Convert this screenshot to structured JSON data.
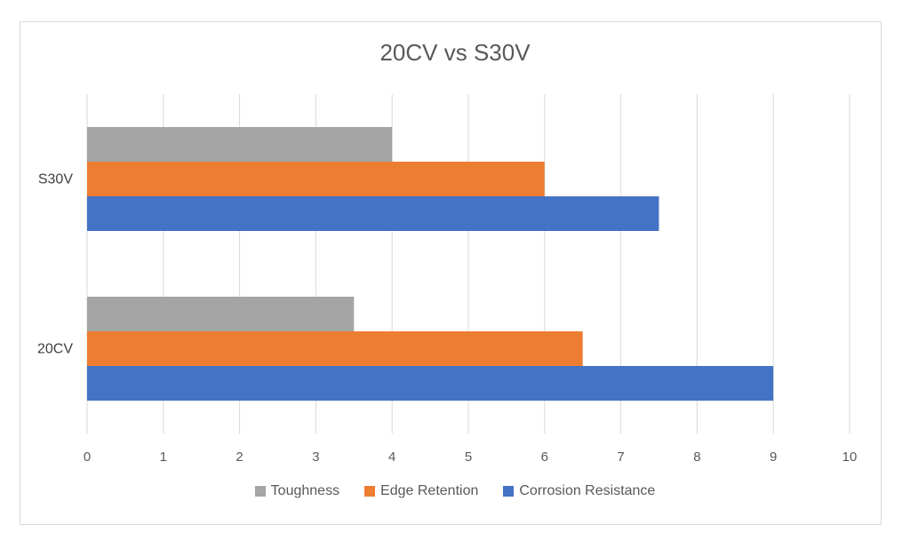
{
  "chart_data": {
    "type": "bar",
    "orientation": "horizontal",
    "title": "20CV vs S30V",
    "categories": [
      "20CV",
      "S30V"
    ],
    "series": [
      {
        "name": "Toughness",
        "color": "#a5a5a5",
        "values": [
          3.5,
          4
        ]
      },
      {
        "name": "Edge Retention",
        "color": "#ed7d31",
        "values": [
          6.5,
          6
        ]
      },
      {
        "name": "Corrosion Resistance",
        "color": "#4472c4",
        "values": [
          9,
          7.5
        ]
      }
    ],
    "xlim": [
      0,
      10
    ],
    "xticks": [
      "0",
      "1",
      "2",
      "3",
      "4",
      "5",
      "6",
      "7",
      "8",
      "9",
      "10"
    ],
    "grid": true,
    "legend_position": "bottom"
  }
}
